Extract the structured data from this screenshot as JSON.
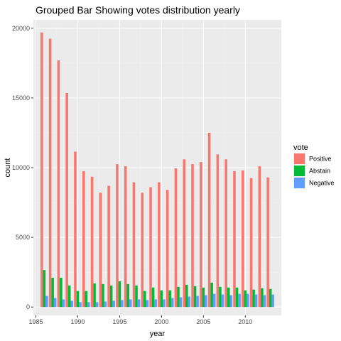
{
  "chart_data": {
    "type": "bar",
    "title": "Grouped Bar Showing votes distribution yearly",
    "xlabel": "year",
    "ylabel": "count",
    "xlim": [
      1984.7,
      2014.3
    ],
    "ylim": [
      -600,
      20600
    ],
    "x_ticks": [
      1985,
      1990,
      1995,
      2000,
      2005,
      2010
    ],
    "y_ticks": [
      0,
      5000,
      10000,
      15000,
      20000
    ],
    "grid": true,
    "legend_position": "right",
    "legend_title": "vote",
    "x": [
      1986,
      1987,
      1988,
      1989,
      1990,
      1991,
      1992,
      1993,
      1994,
      1995,
      1996,
      1997,
      1998,
      1999,
      2000,
      2001,
      2002,
      2003,
      2004,
      2005,
      2006,
      2007,
      2008,
      2009,
      2010,
      2011,
      2012,
      2013
    ],
    "series": [
      {
        "name": "Positive",
        "color": "#f8766d",
        "values": [
          19700,
          19250,
          17700,
          15350,
          11150,
          9750,
          9350,
          8200,
          8700,
          10250,
          10100,
          8950,
          8200,
          8600,
          8950,
          8400,
          9950,
          10600,
          10250,
          10400,
          12500,
          10950,
          10600,
          9750,
          9800,
          9250,
          10100,
          9300
        ]
      },
      {
        "name": "Abstain",
        "color": "#00ba38",
        "values": [
          2650,
          2100,
          2100,
          1550,
          1150,
          1150,
          1700,
          1650,
          1550,
          1850,
          1650,
          1550,
          1150,
          1400,
          1200,
          1200,
          1450,
          1600,
          1500,
          1400,
          1750,
          1450,
          1400,
          1400,
          1200,
          1250,
          1350,
          1300
        ]
      },
      {
        "name": "Negative",
        "color": "#619cff",
        "values": [
          800,
          650,
          550,
          450,
          350,
          350,
          350,
          400,
          450,
          500,
          550,
          550,
          500,
          550,
          550,
          650,
          700,
          750,
          800,
          850,
          950,
          900,
          850,
          950,
          950,
          900,
          850,
          900
        ]
      }
    ]
  }
}
